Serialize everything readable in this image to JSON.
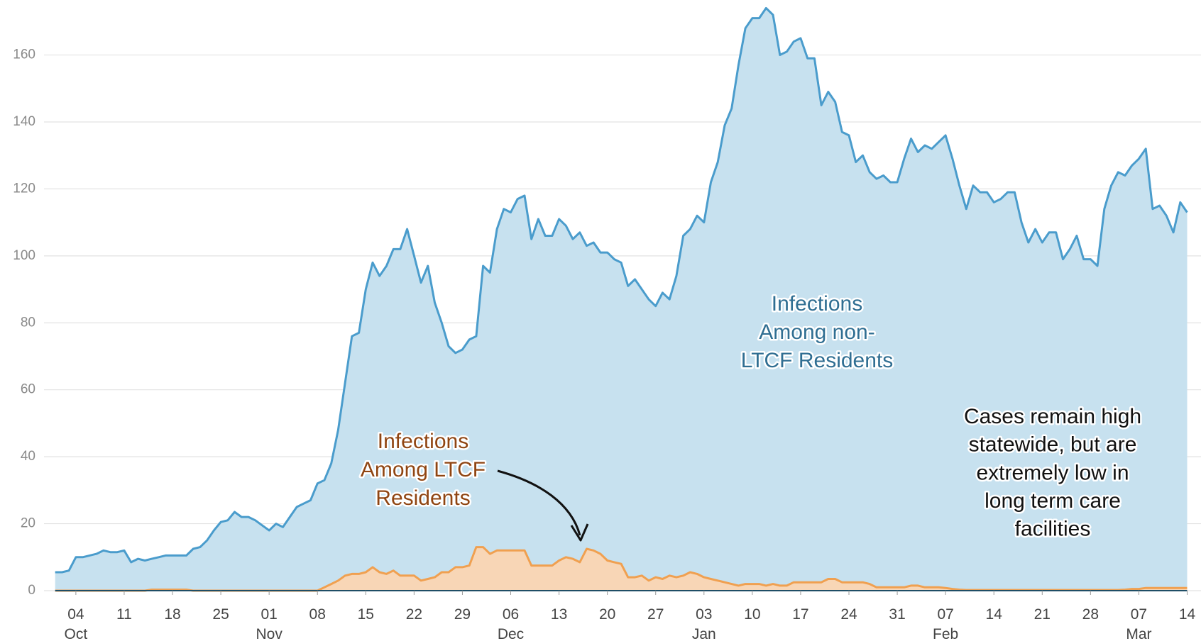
{
  "chart_data": {
    "type": "area",
    "x": [
      "Oct 01",
      "Oct 02",
      "Oct 03",
      "Oct 04",
      "Oct 05",
      "Oct 06",
      "Oct 07",
      "Oct 08",
      "Oct 09",
      "Oct 10",
      "Oct 11",
      "Oct 12",
      "Oct 13",
      "Oct 14",
      "Oct 15",
      "Oct 16",
      "Oct 17",
      "Oct 18",
      "Oct 19",
      "Oct 20",
      "Oct 21",
      "Oct 22",
      "Oct 23",
      "Oct 24",
      "Oct 25",
      "Oct 26",
      "Oct 27",
      "Oct 28",
      "Oct 29",
      "Oct 30",
      "Oct 31",
      "Nov 01",
      "Nov 02",
      "Nov 03",
      "Nov 04",
      "Nov 05",
      "Nov 06",
      "Nov 07",
      "Nov 08",
      "Nov 09",
      "Nov 10",
      "Nov 11",
      "Nov 12",
      "Nov 13",
      "Nov 14",
      "Nov 15",
      "Nov 16",
      "Nov 17",
      "Nov 18",
      "Nov 19",
      "Nov 20",
      "Nov 21",
      "Nov 22",
      "Nov 23",
      "Nov 24",
      "Nov 25",
      "Nov 26",
      "Nov 27",
      "Nov 28",
      "Nov 29",
      "Nov 30",
      "Dec 01",
      "Dec 02",
      "Dec 03",
      "Dec 04",
      "Dec 05",
      "Dec 06",
      "Dec 07",
      "Dec 08",
      "Dec 09",
      "Dec 10",
      "Dec 11",
      "Dec 12",
      "Dec 13",
      "Dec 14",
      "Dec 15",
      "Dec 16",
      "Dec 17",
      "Dec 18",
      "Dec 19",
      "Dec 20",
      "Dec 21",
      "Dec 22",
      "Dec 23",
      "Dec 24",
      "Dec 25",
      "Dec 26",
      "Dec 27",
      "Dec 28",
      "Dec 29",
      "Dec 30",
      "Dec 31",
      "Jan 01",
      "Jan 02",
      "Jan 03",
      "Jan 04",
      "Jan 05",
      "Jan 06",
      "Jan 07",
      "Jan 08",
      "Jan 09",
      "Jan 10",
      "Jan 11",
      "Jan 12",
      "Jan 13",
      "Jan 14",
      "Jan 15",
      "Jan 16",
      "Jan 17",
      "Jan 18",
      "Jan 19",
      "Jan 20",
      "Jan 21",
      "Jan 22",
      "Jan 23",
      "Jan 24",
      "Jan 25",
      "Jan 26",
      "Jan 27",
      "Jan 28",
      "Jan 29",
      "Jan 30",
      "Jan 31",
      "Feb 01",
      "Feb 02",
      "Feb 03",
      "Feb 04",
      "Feb 05",
      "Feb 06",
      "Feb 07",
      "Feb 08",
      "Feb 09",
      "Feb 10",
      "Feb 11",
      "Feb 12",
      "Feb 13",
      "Feb 14",
      "Feb 15",
      "Feb 16",
      "Feb 17",
      "Feb 18",
      "Feb 19",
      "Feb 20",
      "Feb 21",
      "Feb 22",
      "Feb 23",
      "Feb 24",
      "Feb 25",
      "Feb 26",
      "Feb 27",
      "Feb 28",
      "Mar 01",
      "Mar 02",
      "Mar 03",
      "Mar 04",
      "Mar 05",
      "Mar 06",
      "Mar 07",
      "Mar 08",
      "Mar 09",
      "Mar 10",
      "Mar 11",
      "Mar 12",
      "Mar 13",
      "Mar 14"
    ],
    "series": [
      {
        "color": "#4a9ccc",
        "fill": "#c7e1ef",
        "values": [
          5.5,
          5.5,
          6,
          10,
          10,
          10.5,
          11,
          12,
          11.5,
          11.5,
          12,
          8.5,
          9.5,
          9,
          9.5,
          10,
          10.5,
          10.5,
          10.5,
          10.5,
          12.5,
          13,
          15,
          18,
          20.5,
          21,
          23.5,
          22,
          22,
          21,
          19.5,
          18,
          20,
          19,
          22,
          25,
          26,
          27,
          32,
          33,
          38,
          48,
          62,
          76,
          77,
          90,
          98,
          94,
          97,
          102,
          102,
          108,
          100,
          92,
          97,
          86,
          80,
          73,
          71,
          72,
          75,
          76,
          97,
          95,
          108,
          114,
          113,
          117,
          118,
          105,
          111,
          106,
          106,
          111,
          109,
          105,
          107,
          103,
          104,
          101,
          101,
          99,
          98,
          91,
          93,
          90,
          87,
          85,
          89,
          87,
          94,
          106,
          108,
          112,
          110,
          122,
          128,
          139,
          144,
          157,
          168,
          171,
          171,
          174,
          172,
          160,
          161,
          164,
          165,
          159,
          159,
          145,
          149,
          146,
          137,
          136,
          128,
          130,
          125,
          123,
          124,
          122,
          122,
          129,
          135,
          131,
          133,
          132,
          134,
          136,
          129,
          121,
          114,
          121,
          119,
          119,
          116,
          117,
          119,
          119,
          110,
          104,
          108,
          104,
          107,
          107,
          99,
          102,
          106,
          99,
          99,
          97,
          114,
          121,
          125,
          124,
          127,
          129,
          132,
          114,
          115,
          112,
          107,
          116,
          113
        ]
      },
      {
        "color": "#f0a050",
        "fill": "#f8d6b6",
        "values": [
          0,
          0,
          0,
          0,
          0,
          0,
          0,
          0,
          0,
          0,
          0,
          0,
          0,
          0,
          0.3,
          0.3,
          0.3,
          0.3,
          0.3,
          0.3,
          0,
          0,
          0,
          0,
          0,
          0,
          0,
          0,
          0,
          0,
          0,
          0,
          0,
          0,
          0,
          0,
          0,
          0,
          0,
          1,
          2,
          3,
          4.5,
          5,
          5,
          5.5,
          7,
          5.5,
          5,
          6,
          4.5,
          4.5,
          4.5,
          3,
          3.5,
          4,
          5.5,
          5.5,
          7,
          7,
          7.5,
          13,
          13,
          11,
          12,
          12,
          12,
          12,
          12,
          7.5,
          7.5,
          7.5,
          7.5,
          9,
          10,
          9.5,
          8.5,
          12.5,
          12,
          11,
          9,
          8.5,
          8,
          4,
          4,
          4.5,
          3,
          4,
          3.5,
          4.5,
          4,
          4.5,
          5.5,
          5,
          4,
          3.5,
          3,
          2.5,
          2,
          1.5,
          2,
          2,
          2,
          1.5,
          2,
          1.5,
          1.5,
          2.5,
          2.5,
          2.5,
          2.5,
          2.5,
          3.5,
          3.5,
          2.5,
          2.5,
          2.5,
          2.5,
          2,
          1,
          1,
          1,
          1,
          1,
          1.5,
          1.5,
          1,
          1,
          1,
          0.8,
          0.5,
          0.3,
          0.2,
          0.2,
          0.2,
          0.2,
          0.2,
          0.2,
          0.2,
          0.2,
          0.2,
          0.2,
          0.2,
          0.2,
          0.2,
          0.2,
          0.2,
          0.2,
          0.2,
          0.2,
          0.2,
          0.2,
          0.2,
          0.2,
          0.2,
          0.3,
          0.5,
          0.5,
          0.8,
          0.8,
          0.8,
          0.8,
          0.8,
          0.8,
          0.8
        ]
      }
    ],
    "ylim": [
      0,
      176
    ],
    "yticks": [
      0,
      20,
      40,
      60,
      80,
      100,
      120,
      140,
      160
    ],
    "grid": true,
    "xticks": [
      {
        "value": "Oct 04",
        "label": "04"
      },
      {
        "value": "Oct 11",
        "label": "11"
      },
      {
        "value": "Oct 18",
        "label": "18"
      },
      {
        "value": "Oct 25",
        "label": "25"
      },
      {
        "value": "Nov 01",
        "label": "01"
      },
      {
        "value": "Nov 08",
        "label": "08"
      },
      {
        "value": "Nov 15",
        "label": "15"
      },
      {
        "value": "Nov 22",
        "label": "22"
      },
      {
        "value": "Nov 29",
        "label": "29"
      },
      {
        "value": "Dec 06",
        "label": "06"
      },
      {
        "value": "Dec 13",
        "label": "13"
      },
      {
        "value": "Dec 20",
        "label": "20"
      },
      {
        "value": "Dec 27",
        "label": "27"
      },
      {
        "value": "Jan 03",
        "label": "03"
      },
      {
        "value": "Jan 10",
        "label": "10"
      },
      {
        "value": "Jan 17",
        "label": "17"
      },
      {
        "value": "Jan 24",
        "label": "24"
      },
      {
        "value": "Jan 31",
        "label": "31"
      },
      {
        "value": "Feb 07",
        "label": "07"
      },
      {
        "value": "Feb 14",
        "label": "14"
      },
      {
        "value": "Feb 21",
        "label": "21"
      },
      {
        "value": "Feb 28",
        "label": "28"
      },
      {
        "value": "Mar 07",
        "label": "07"
      },
      {
        "value": "Mar 14",
        "label": "14"
      }
    ],
    "month_labels": [
      {
        "value": "Oct 04",
        "label": "Oct"
      },
      {
        "value": "Nov 01",
        "label": "Nov"
      },
      {
        "value": "Dec 06",
        "label": "Dec"
      },
      {
        "value": "Jan 03",
        "label": "Jan"
      },
      {
        "value": "Feb 07",
        "label": "Feb"
      },
      {
        "value": "Mar 07",
        "label": "Mar"
      }
    ],
    "annotations": [
      {
        "lines": [
          "Infections",
          "Among non-",
          "LTCF Residents"
        ],
        "color": "#2f6e92"
      },
      {
        "lines": [
          "Infections",
          "Among LTCF",
          "Residents"
        ],
        "color": "#8f4512"
      },
      {
        "lines": [
          "Cases remain high",
          "statewide, but are",
          "extremely low in",
          "long term care",
          "facilities"
        ],
        "color": "#111111"
      }
    ]
  }
}
